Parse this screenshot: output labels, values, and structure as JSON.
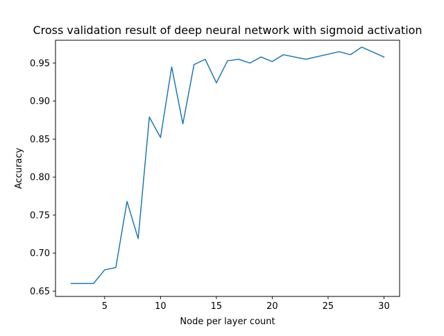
{
  "chart_data": {
    "type": "line",
    "title": "Cross validation result of deep neural network with sigmoid activation",
    "xlabel": "Node per layer count",
    "ylabel": "Accuracy",
    "xlim": [
      0.6,
      31.4
    ],
    "ylim": [
      0.643,
      0.98
    ],
    "xticks": [
      5,
      10,
      15,
      20,
      25,
      30
    ],
    "yticks": [
      0.65,
      0.7,
      0.75,
      0.8,
      0.85,
      0.9,
      0.95
    ],
    "xtick_labels": [
      "5",
      "10",
      "15",
      "20",
      "25",
      "30"
    ],
    "ytick_labels": [
      "0.65",
      "0.70",
      "0.75",
      "0.80",
      "0.85",
      "0.90",
      "0.95"
    ],
    "grid": false,
    "legend": "none",
    "line_color": "#1f77b4",
    "series": [
      {
        "x": [
          2,
          3,
          4,
          5,
          6,
          7,
          8,
          9,
          10,
          11,
          12,
          13,
          14,
          15,
          16,
          17,
          18,
          19,
          20,
          21,
          23,
          26,
          27,
          28,
          30
        ],
        "y": [
          0.66,
          0.66,
          0.66,
          0.678,
          0.681,
          0.768,
          0.719,
          0.879,
          0.852,
          0.945,
          0.87,
          0.948,
          0.955,
          0.924,
          0.953,
          0.955,
          0.95,
          0.958,
          0.952,
          0.961,
          0.955,
          0.965,
          0.961,
          0.971,
          0.958
        ]
      }
    ]
  }
}
